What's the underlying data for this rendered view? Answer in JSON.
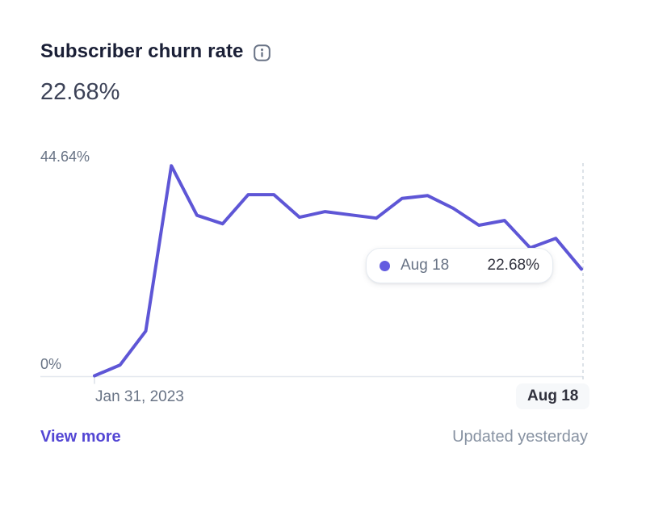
{
  "header": {
    "title": "Subscriber churn rate",
    "current_value": "22.68%"
  },
  "chart_data": {
    "type": "line",
    "title": "Subscriber churn rate",
    "unit": "%",
    "ylim": [
      0,
      44.64
    ],
    "grid": false,
    "legend": "none",
    "line_color": "#5e56d6",
    "axis_color": "#e3e8ee",
    "guideline_color": "#c9d2dc",
    "y_axis_labels": {
      "max": "44.64%",
      "min": "0%"
    },
    "x_axis_labels": {
      "start": "Jan 31, 2023",
      "end": "Aug 18"
    },
    "values": [
      0,
      2.3,
      9.5,
      44.64,
      34.1,
      32.3,
      38.5,
      38.5,
      33.7,
      34.9,
      34.2,
      33.5,
      37.7,
      38.3,
      35.6,
      32.0,
      33.0,
      27.2,
      29.2,
      22.68
    ]
  },
  "tooltip": {
    "marker_color": "#635ce0",
    "label": "Aug 18",
    "value": "22.68%"
  },
  "footer": {
    "view_more_label": "View more",
    "updated_text": "Updated yesterday"
  }
}
